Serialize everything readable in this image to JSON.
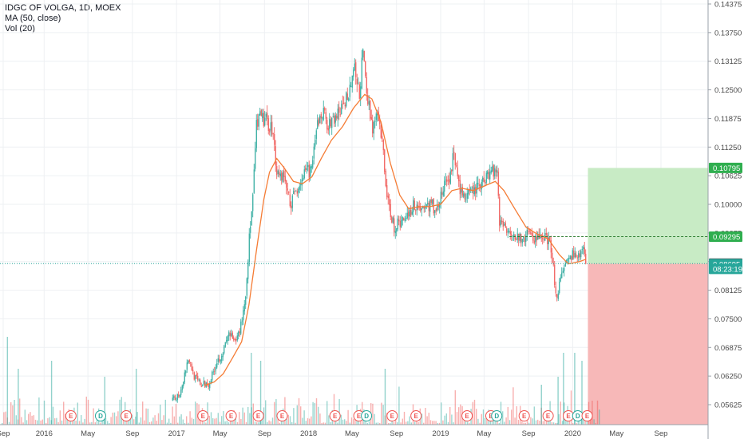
{
  "legend": {
    "symbol_line": "IDGC OF VOLGA, 1D, MOEX",
    "ma_line": "MA (50, close)",
    "vol_line": "Vol (20)"
  },
  "colors": {
    "up": "#26a69a",
    "down": "#ef5350",
    "ma": "#f57c35",
    "profit_zone": "#c8ebc5",
    "loss_zone": "#f7b8b8",
    "last_price_line": "#26a69a",
    "entry_tag": "#4d4d4d",
    "target_tag": "#2fae4f",
    "stop_tag": "#2fae4f",
    "countdown_tag": "#26a69a"
  },
  "chart_data": {
    "type": "candlestick",
    "title": "IDGC OF VOLGA, 1D, MOEX",
    "indicators": [
      "MA (50, close)",
      "Vol (20)"
    ],
    "y_ticks": [
      "0.14375",
      "0.13750",
      "0.13125",
      "0.12500",
      "0.11875",
      "0.11250",
      "0.10625",
      "0.10000",
      "0.09375",
      "0.08750",
      "0.08125",
      "0.07500",
      "0.06875",
      "0.06250",
      "0.05625"
    ],
    "y_range": [
      0.0525,
      0.1445
    ],
    "x_ticks": [
      "Sep",
      "2016",
      "May",
      "Sep",
      "2017",
      "May",
      "Sep",
      "2018",
      "May",
      "Sep",
      "2019",
      "May",
      "Sep",
      "2020",
      "May",
      "Sep"
    ],
    "x_range": [
      "2015-09",
      "2020-11"
    ],
    "price_path": [
      [
        "2016-12-20",
        0.057
      ],
      [
        "2017-01-10",
        0.059
      ],
      [
        "2017-02-01",
        0.0665
      ],
      [
        "2017-02-20",
        0.062
      ],
      [
        "2017-03-10",
        0.0605
      ],
      [
        "2017-04-01",
        0.061
      ],
      [
        "2017-04-20",
        0.0655
      ],
      [
        "2017-05-10",
        0.068
      ],
      [
        "2017-05-25",
        0.072
      ],
      [
        "2017-06-10",
        0.0695
      ],
      [
        "2017-06-25",
        0.073
      ],
      [
        "2017-07-10",
        0.08
      ],
      [
        "2017-07-20",
        0.093
      ],
      [
        "2017-07-30",
        0.101
      ],
      [
        "2017-08-08",
        0.117
      ],
      [
        "2017-08-20",
        0.119
      ],
      [
        "2017-09-05",
        0.118
      ],
      [
        "2017-09-20",
        0.117
      ],
      [
        "2017-10-05",
        0.107
      ],
      [
        "2017-10-25",
        0.106
      ],
      [
        "2017-11-10",
        0.1
      ],
      [
        "2017-11-25",
        0.103
      ],
      [
        "2017-12-15",
        0.106
      ],
      [
        "2018-01-10",
        0.108
      ],
      [
        "2018-01-25",
        0.118
      ],
      [
        "2018-02-10",
        0.12
      ],
      [
        "2018-02-25",
        0.117
      ],
      [
        "2018-03-15",
        0.119
      ],
      [
        "2018-04-05",
        0.121
      ],
      [
        "2018-04-25",
        0.126
      ],
      [
        "2018-05-05",
        0.13
      ],
      [
        "2018-05-20",
        0.124
      ],
      [
        "2018-05-30",
        0.133
      ],
      [
        "2018-06-10",
        0.124
      ],
      [
        "2018-06-25",
        0.117
      ],
      [
        "2018-07-10",
        0.119
      ],
      [
        "2018-07-25",
        0.112
      ],
      [
        "2018-08-05",
        0.101
      ],
      [
        "2018-08-25",
        0.095
      ],
      [
        "2018-09-10",
        0.096
      ],
      [
        "2018-09-30",
        0.098
      ],
      [
        "2018-10-20",
        0.1
      ],
      [
        "2018-11-10",
        0.099
      ],
      [
        "2018-12-01",
        0.1
      ],
      [
        "2018-12-20",
        0.099
      ],
      [
        "2019-01-10",
        0.104
      ],
      [
        "2019-01-25",
        0.106
      ],
      [
        "2019-02-05",
        0.111
      ],
      [
        "2019-02-20",
        0.104
      ],
      [
        "2019-03-10",
        0.101
      ],
      [
        "2019-03-30",
        0.103
      ],
      [
        "2019-04-20",
        0.104
      ],
      [
        "2019-05-10",
        0.107
      ],
      [
        "2019-05-25",
        0.1075
      ],
      [
        "2019-06-05",
        0.1075
      ],
      [
        "2019-06-12",
        0.096
      ],
      [
        "2019-06-30",
        0.095
      ],
      [
        "2019-07-20",
        0.094
      ],
      [
        "2019-08-10",
        0.092
      ],
      [
        "2019-08-30",
        0.0935
      ],
      [
        "2019-09-20",
        0.0925
      ],
      [
        "2019-10-10",
        0.093
      ],
      [
        "2019-10-25",
        0.092
      ],
      [
        "2019-11-05",
        0.088
      ],
      [
        "2019-11-15",
        0.08
      ],
      [
        "2019-11-30",
        0.084
      ],
      [
        "2019-12-15",
        0.087
      ],
      [
        "2019-12-30",
        0.089
      ],
      [
        "2020-01-15",
        0.088
      ],
      [
        "2020-01-30",
        0.091
      ],
      [
        "2020-02-07",
        0.087
      ]
    ],
    "ma_path": [
      [
        "2017-03-20",
        0.0605
      ],
      [
        "2017-04-15",
        0.0612
      ],
      [
        "2017-05-10",
        0.063
      ],
      [
        "2017-06-05",
        0.0665
      ],
      [
        "2017-06-30",
        0.07
      ],
      [
        "2017-07-20",
        0.078
      ],
      [
        "2017-08-10",
        0.09
      ],
      [
        "2017-08-30",
        0.101
      ],
      [
        "2017-09-15",
        0.107
      ],
      [
        "2017-10-05",
        0.11
      ],
      [
        "2017-10-25",
        0.108
      ],
      [
        "2017-11-20",
        0.105
      ],
      [
        "2017-12-15",
        0.1045
      ],
      [
        "2018-01-10",
        0.106
      ],
      [
        "2018-02-05",
        0.11
      ],
      [
        "2018-03-05",
        0.114
      ],
      [
        "2018-04-05",
        0.117
      ],
      [
        "2018-05-05",
        0.121
      ],
      [
        "2018-06-05",
        0.124
      ],
      [
        "2018-06-25",
        0.123
      ],
      [
        "2018-07-20",
        0.118
      ],
      [
        "2018-08-15",
        0.109
      ],
      [
        "2018-09-10",
        0.102
      ],
      [
        "2018-10-05",
        0.099
      ],
      [
        "2018-11-01",
        0.0995
      ],
      [
        "2018-12-01",
        0.0995
      ],
      [
        "2019-01-01",
        0.1
      ],
      [
        "2019-02-01",
        0.103
      ],
      [
        "2019-03-01",
        0.1035
      ],
      [
        "2019-04-01",
        0.103
      ],
      [
        "2019-05-01",
        0.104
      ],
      [
        "2019-06-01",
        0.105
      ],
      [
        "2019-06-25",
        0.103
      ],
      [
        "2019-07-25",
        0.099
      ],
      [
        "2019-08-25",
        0.095
      ],
      [
        "2019-09-25",
        0.0935
      ],
      [
        "2019-10-25",
        0.0925
      ],
      [
        "2019-11-25",
        0.089
      ],
      [
        "2019-12-20",
        0.087
      ],
      [
        "2020-01-20",
        0.0875
      ],
      [
        "2020-02-07",
        0.088
      ]
    ],
    "volume_spikes": [
      [
        "2015-09-20",
        0.55
      ],
      [
        "2015-10-20",
        0.35
      ],
      [
        "2016-01-20",
        0.4
      ],
      [
        "2016-06-15",
        0.3
      ],
      [
        "2016-09-10",
        0.35
      ],
      [
        "2017-07-25",
        0.45
      ],
      [
        "2017-08-20",
        0.4
      ],
      [
        "2018-07-30",
        0.35
      ],
      [
        "2019-10-05",
        0.25
      ],
      [
        "2019-11-20",
        0.3
      ],
      [
        "2019-12-05",
        0.45
      ],
      [
        "2020-01-05",
        0.45
      ],
      [
        "2020-01-25",
        0.4
      ]
    ],
    "events": [
      {
        "date": "2016-03-15",
        "label": "E",
        "kind": "earnings"
      },
      {
        "date": "2016-06-05",
        "label": "D",
        "kind": "dividend"
      },
      {
        "date": "2016-08-15",
        "label": "E",
        "kind": "earnings"
      },
      {
        "date": "2017-03-15",
        "label": "E",
        "kind": "earnings"
      },
      {
        "date": "2017-06-01",
        "label": "E",
        "kind": "earnings"
      },
      {
        "date": "2017-08-15",
        "label": "E",
        "kind": "earnings"
      },
      {
        "date": "2017-10-20",
        "label": "E",
        "kind": "earnings"
      },
      {
        "date": "2018-03-15",
        "label": "E",
        "kind": "earnings"
      },
      {
        "date": "2018-05-20",
        "label": "E",
        "kind": "earnings"
      },
      {
        "date": "2018-06-10",
        "label": "D",
        "kind": "dividend"
      },
      {
        "date": "2018-08-20",
        "label": "E",
        "kind": "earnings"
      },
      {
        "date": "2018-10-25",
        "label": "E",
        "kind": "earnings"
      },
      {
        "date": "2019-03-15",
        "label": "E",
        "kind": "earnings"
      },
      {
        "date": "2019-05-20",
        "label": "E",
        "kind": "earnings"
      },
      {
        "date": "2019-06-05",
        "label": "D",
        "kind": "dividend"
      },
      {
        "date": "2019-08-20",
        "label": "E",
        "kind": "earnings"
      },
      {
        "date": "2019-10-25",
        "label": "E",
        "kind": "earnings"
      },
      {
        "date": "2019-12-20",
        "label": "E",
        "kind": "earnings"
      },
      {
        "date": "2020-01-15",
        "label": "D",
        "kind": "dividend"
      },
      {
        "date": "2020-02-10",
        "label": "E",
        "kind": "earnings"
      }
    ],
    "position": {
      "entry": 0.08705,
      "target": 0.10795,
      "stop": 0.0525,
      "target_dash": 0.09295,
      "start_date": "2020-02-12",
      "end_date": "2020-11-30"
    },
    "price_tags": [
      {
        "value": "0.10795",
        "price": 0.10795,
        "kind": "target"
      },
      {
        "value": "0.09295",
        "price": 0.09295,
        "kind": "stop"
      },
      {
        "value": "0.08705",
        "price": 0.08705,
        "kind": "entry"
      },
      {
        "value": "0.08695",
        "price": 0.08695,
        "kind": "last"
      },
      {
        "value": "08:23:19",
        "price": 0.0859,
        "kind": "countdown"
      }
    ]
  }
}
